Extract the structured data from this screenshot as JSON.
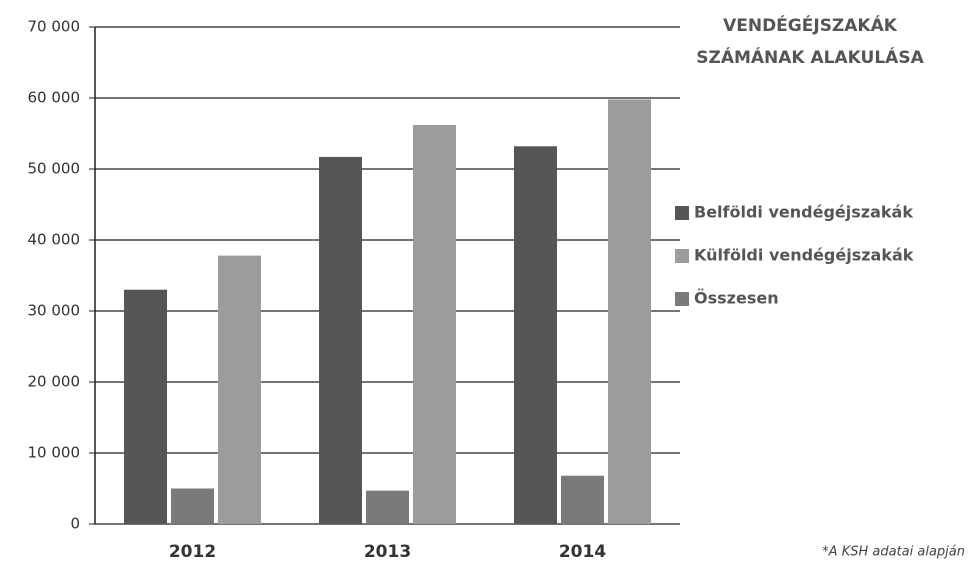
{
  "chart_data": {
    "type": "bar",
    "title": [
      "VENDÉGÉJSZAKÁK",
      "SZÁMÁNAK ALAKULÁSA"
    ],
    "annotation": "*A KSH adatai alapján",
    "categories": [
      "2012",
      "2013",
      "2014"
    ],
    "series": [
      {
        "name": "Belföldi vendégéjszakák",
        "color": "#565656",
        "values": [
          33000,
          51700,
          53200
        ]
      },
      {
        "name": "Külföldi vendégéjszakák",
        "color": "#9c9c9c",
        "values": [
          37800,
          56200,
          59800
        ]
      },
      {
        "name": "Összesen",
        "color": "#7a7a7a",
        "values": [
          5000,
          4700,
          6800
        ]
      }
    ],
    "ylim": [
      0,
      70000
    ],
    "yticks": [
      0,
      {
        "value": 10000,
        "label": "10 000"
      },
      {
        "value": 20000,
        "label": "20 000"
      },
      {
        "value": 30000,
        "label": "30 000"
      },
      {
        "value": 40000,
        "label": "40 000"
      },
      {
        "value": 50000,
        "label": "50 000"
      },
      {
        "value": 60000,
        "label": "60 000"
      },
      {
        "value": 70000,
        "label": "70 000"
      }
    ],
    "grid": true,
    "legend": "right"
  }
}
